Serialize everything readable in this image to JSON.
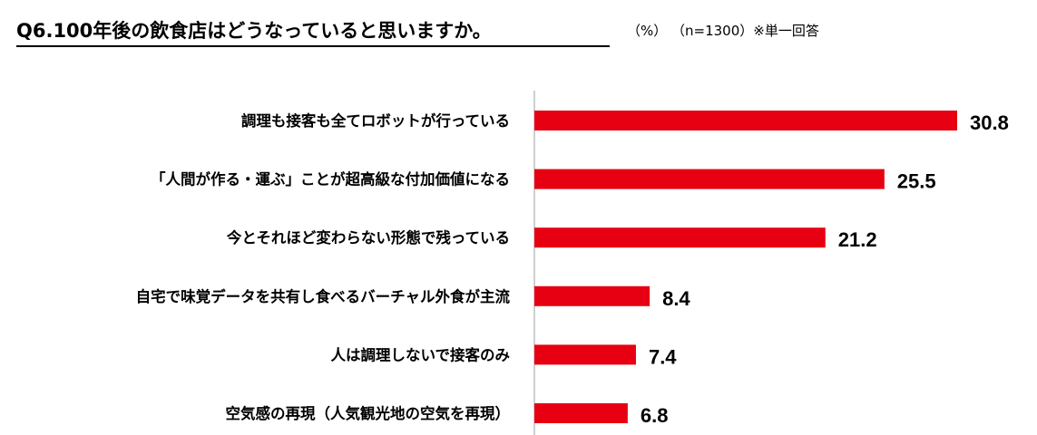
{
  "header": {
    "title": "Q6.100年後の飲食店はどうなっていると思いますか。",
    "unit": "（%）",
    "note": "（n=1300）※単一回答"
  },
  "colors": {
    "bar": "#e60012",
    "axis": "#bfbfbf",
    "text": "#000000"
  },
  "chart_data": {
    "type": "bar",
    "orientation": "horizontal",
    "title": "Q6.100年後の飲食店はどうなっていると思いますか。",
    "unit": "（%）",
    "note": "（n=1300）※単一回答",
    "categories": [
      "調理も接客も全てロボットが行っている",
      "「人間が作る・運ぶ」ことが超高級な付加価値になる",
      "今とそれほど変わらない形態で残っている",
      "自宅で味覚データを共有し食べるバーチャル外食が主流",
      "人は調理しないで接客のみ",
      "空気感の再現（人気観光地の空気を再現）"
    ],
    "values": [
      30.8,
      25.5,
      21.2,
      8.4,
      7.4,
      6.8
    ],
    "value_labels": [
      "30.8",
      "25.5",
      "21.2",
      "8.4",
      "7.4",
      "6.8"
    ],
    "xlim": [
      0,
      35
    ],
    "grid": false,
    "legend": "none"
  }
}
